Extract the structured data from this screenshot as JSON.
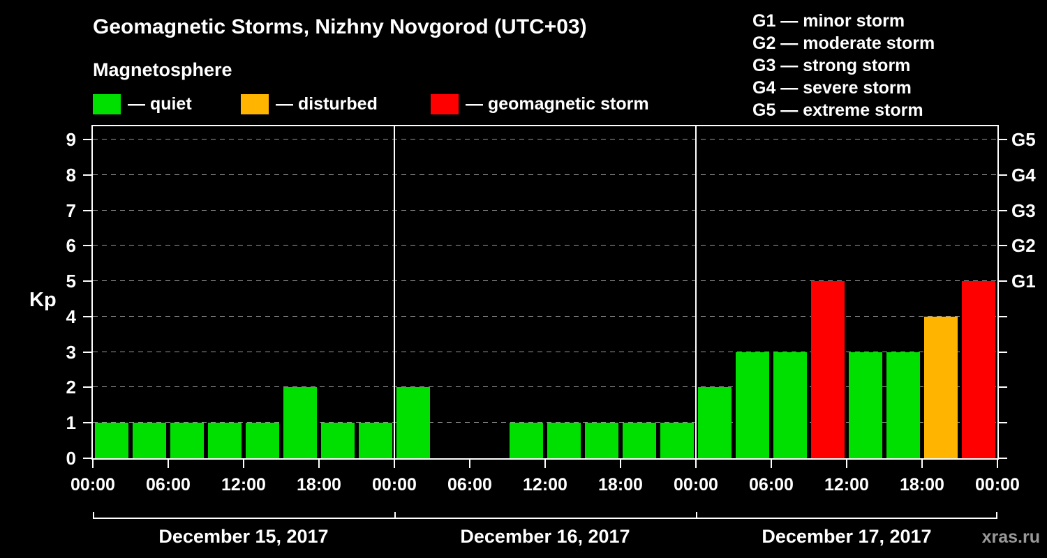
{
  "title": "Geomagnetic Storms, Nizhny Novgorod (UTC+03)",
  "subtitle": "Magnetosphere",
  "kp_label": "Kp",
  "watermark": "xras.ru",
  "legend": {
    "quiet": {
      "label": "— quiet",
      "color": "#00e000"
    },
    "disturbed": {
      "label": "— disturbed",
      "color": "#ffb400"
    },
    "storm": {
      "label": "— geomagnetic storm",
      "color": "#ff0000"
    }
  },
  "g_legend": [
    "G1 — minor storm",
    "G2 — moderate storm",
    "G3 — strong storm",
    "G4 — severe storm",
    "G5 — extreme storm"
  ],
  "chart_data": {
    "type": "bar",
    "title": "Geomagnetic Storms, Nizhny Novgorod (UTC+03)",
    "subtitle": "Magnetosphere",
    "ylabel": "Kp",
    "ylim": [
      0,
      9.4
    ],
    "yticks": [
      0,
      1,
      2,
      3,
      4,
      5,
      6,
      7,
      8,
      9
    ],
    "grid": "dashed horizontal at each Kp level 1-9",
    "bar_interval_hours": 3,
    "x_tick_labels": [
      "00:00",
      "06:00",
      "12:00",
      "18:00",
      "00:00",
      "06:00",
      "12:00",
      "18:00",
      "00:00",
      "06:00",
      "12:00",
      "18:00",
      "00:00"
    ],
    "right_axis_labels": [
      {
        "kp": 5,
        "label": "G1"
      },
      {
        "kp": 6,
        "label": "G2"
      },
      {
        "kp": 7,
        "label": "G3"
      },
      {
        "kp": 8,
        "label": "G4"
      },
      {
        "kp": 9,
        "label": "G5"
      }
    ],
    "days": [
      {
        "date": "December 15, 2017",
        "values": [
          1,
          1,
          1,
          1,
          1,
          2,
          1,
          1
        ]
      },
      {
        "date": "December 16, 2017",
        "values": [
          2,
          0,
          0,
          1,
          1,
          1,
          1,
          1
        ]
      },
      {
        "date": "December 17, 2017",
        "values": [
          2,
          3,
          3,
          5,
          3,
          3,
          4,
          5
        ]
      }
    ],
    "colors": {
      "quiet": "#00e000",
      "disturbed": "#ffb400",
      "storm": "#ff0000"
    },
    "color_rule": "Kp<=3 quiet(green), Kp=4 disturbed(orange), Kp>=5 storm(red)"
  }
}
